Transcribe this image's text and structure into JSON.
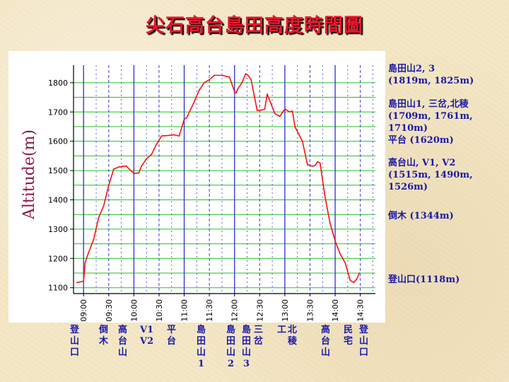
{
  "title": "尖石高台島田高度時間圖",
  "chart_data": {
    "type": "line",
    "ylabel": "Altitude(m)",
    "ylim": [
      1080,
      1860
    ],
    "yticks": [
      1100,
      1200,
      1300,
      1400,
      1500,
      1600,
      1700,
      1800
    ],
    "xlim": [
      8.8,
      14.8
    ],
    "xticks": [
      "09:00",
      "09:30",
      "10:00",
      "10:30",
      "11:00",
      "11:30",
      "12:00",
      "12:30",
      "13:00",
      "13:30",
      "14:00",
      "14:30"
    ],
    "grid": true,
    "series": [
      {
        "x": [
          8.87,
          9.0,
          9.03,
          9.1,
          9.2,
          9.3,
          9.4,
          9.5,
          9.6,
          9.7,
          9.8,
          9.85,
          10.0,
          10.1,
          10.15,
          10.25,
          10.35,
          10.45,
          10.55,
          10.7,
          10.8,
          10.9,
          11.0,
          11.05,
          11.2,
          11.3,
          11.4,
          11.5,
          11.6,
          11.75,
          11.9,
          12.0,
          12.03,
          12.07,
          12.15,
          12.22,
          12.27,
          12.33,
          12.45,
          12.55,
          12.6,
          12.65,
          12.72,
          12.8,
          12.9,
          13.0,
          13.1,
          13.15,
          13.2,
          13.35,
          13.45,
          13.55,
          13.6,
          13.65,
          13.7,
          13.8,
          13.9,
          14.0,
          14.1,
          14.2,
          14.3,
          14.37,
          14.43,
          14.48
        ],
        "y": [
          1118,
          1122,
          1185,
          1220,
          1265,
          1340,
          1380,
          1450,
          1505,
          1512,
          1515,
          1515,
          1490,
          1492,
          1515,
          1540,
          1555,
          1590,
          1618,
          1620,
          1622,
          1618,
          1675,
          1680,
          1735,
          1775,
          1800,
          1810,
          1825,
          1825,
          1819,
          1770,
          1765,
          1780,
          1800,
          1830,
          1825,
          1810,
          1705,
          1707,
          1709,
          1761,
          1730,
          1695,
          1685,
          1710,
          1700,
          1703,
          1650,
          1600,
          1520,
          1515,
          1517,
          1530,
          1526,
          1410,
          1320,
          1260,
          1215,
          1185,
          1125,
          1118,
          1130,
          1150
        ]
      }
    ]
  },
  "right_labels": [
    {
      "name": "label-daotian-2-3",
      "lines": [
        "島田山2, 3",
        "(1819m, 1825m)"
      ]
    },
    {
      "name": "label-daotian-1-sancha",
      "lines": [
        "島田山1, 三岔,北稜",
        "(1709m, 1761m, 1710m)",
        "平台 (1620m)"
      ]
    },
    {
      "name": "label-gaotai",
      "lines": [
        "高台山, V1, V2",
        "(1515m, 1490m, 1526m)"
      ]
    },
    {
      "name": "label-fallen-tree",
      "lines": [
        "倒木 (1344m)"
      ]
    },
    {
      "name": "label-trailhead",
      "lines": [
        "登山口(1118m)"
      ]
    }
  ],
  "bottom_labels": [
    {
      "name": "bottom-trailhead-start",
      "chars": [
        "登",
        "山",
        "口"
      ]
    },
    {
      "name": "bottom-fallen-tree",
      "chars": [
        "倒",
        "木"
      ]
    },
    {
      "name": "bottom-gaotai-1",
      "chars": [
        "高",
        "台",
        "山"
      ]
    },
    {
      "name": "bottom-v1-v2",
      "chars": [
        "V1",
        "V2"
      ]
    },
    {
      "name": "bottom-platform",
      "chars": [
        "平",
        "台"
      ]
    },
    {
      "name": "bottom-daotian-1",
      "chars": [
        "島",
        "田",
        "山",
        "1"
      ]
    },
    {
      "name": "bottom-daotian-2",
      "chars": [
        "島",
        "田",
        "山",
        "2"
      ]
    },
    {
      "name": "bottom-daotian-3",
      "chars": [
        "島",
        "田",
        "山",
        "3"
      ]
    },
    {
      "name": "bottom-sancha",
      "chars": [
        "三",
        "岔"
      ]
    },
    {
      "name": "bottom-gong",
      "chars": [
        "工"
      ]
    },
    {
      "name": "bottom-beiling",
      "chars": [
        "北",
        "稜"
      ]
    },
    {
      "name": "bottom-gaotai-2",
      "chars": [
        "高",
        "台",
        "山"
      ]
    },
    {
      "name": "bottom-minzhai",
      "chars": [
        "民",
        "宅"
      ]
    },
    {
      "name": "bottom-trailhead-end",
      "chars": [
        "登",
        "山",
        "口"
      ]
    }
  ]
}
